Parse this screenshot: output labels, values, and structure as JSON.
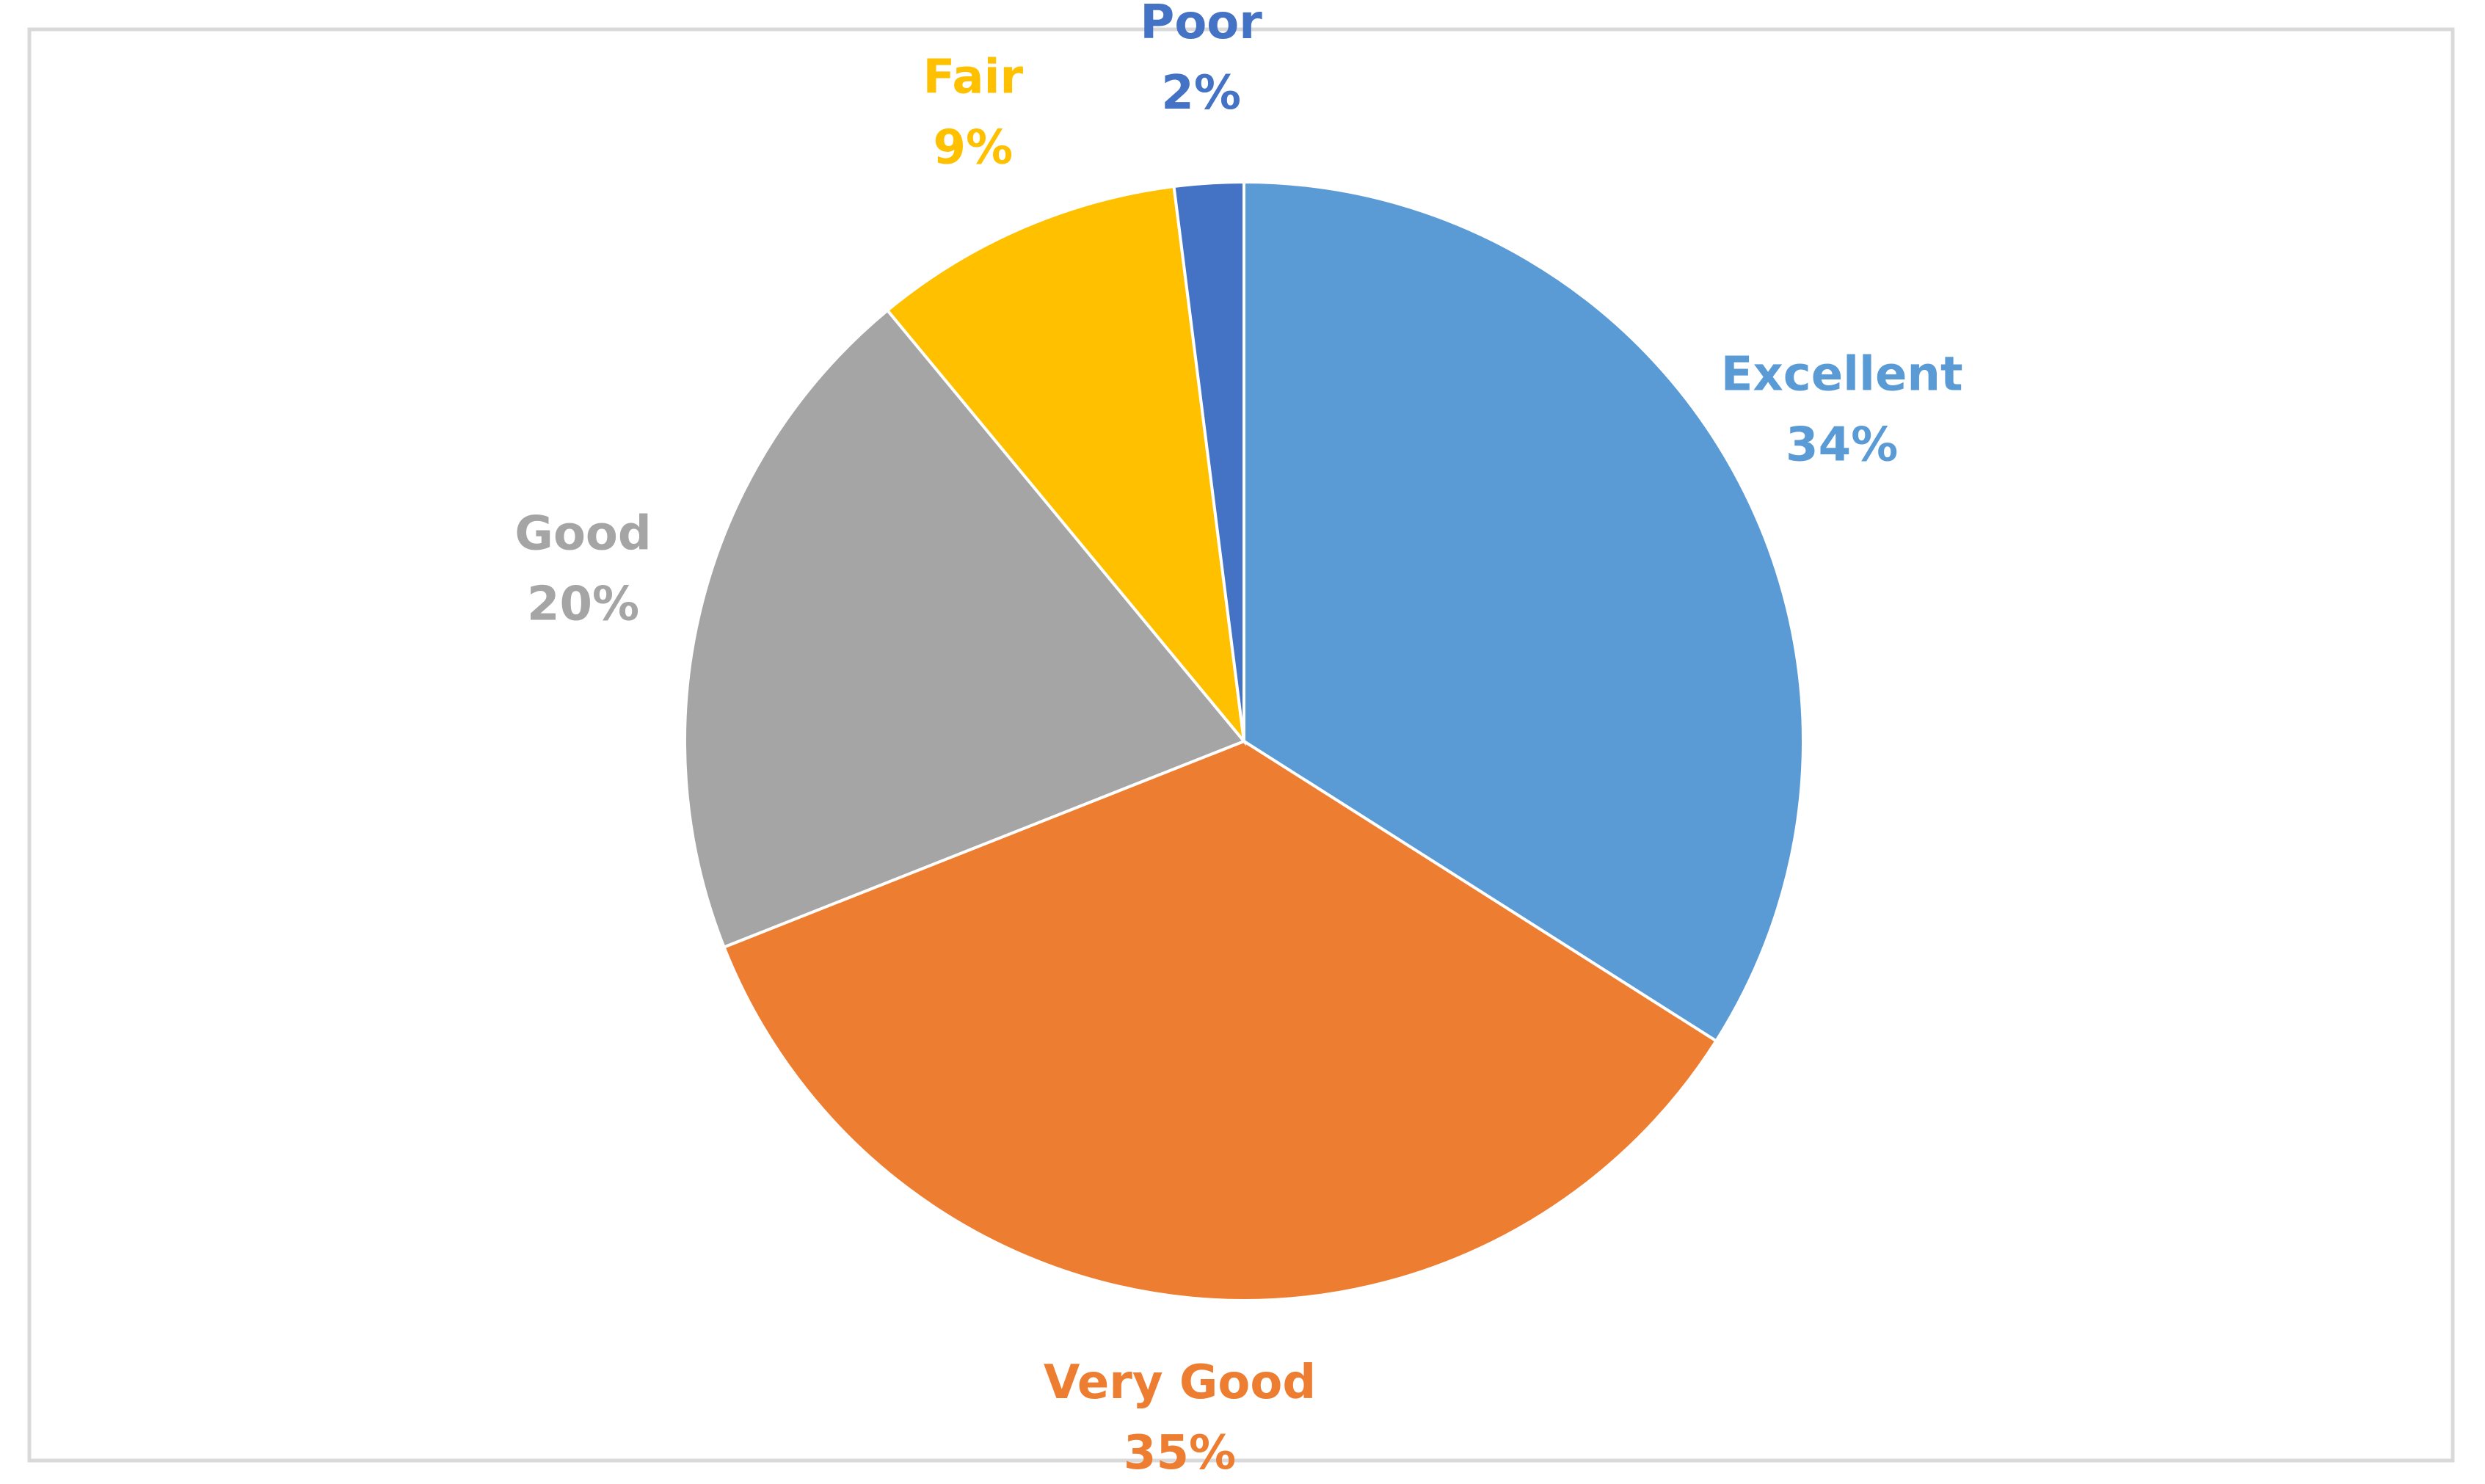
{
  "chart_data": {
    "type": "pie",
    "categories": [
      "Excellent",
      "Very Good",
      "Good",
      "Fair",
      "Poor"
    ],
    "values": [
      34,
      35,
      20,
      9,
      2
    ],
    "value_labels": [
      "34%",
      "35%",
      "20%",
      "9%",
      "2%"
    ],
    "colors": [
      "#5b9bd5",
      "#ed7d31",
      "#a5a5a5",
      "#ffc000",
      "#4472c4"
    ]
  }
}
